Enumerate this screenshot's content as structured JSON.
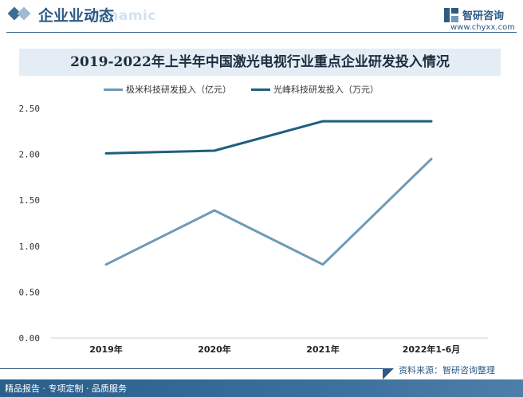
{
  "header": {
    "title": "企业业动态",
    "ghost_text": "dynamic",
    "brand_name": "智研咨询",
    "brand_url": "www.chyxx.com"
  },
  "footer": {
    "left_text": "精品报告 · 专项定制 · 品质服务",
    "source": "资料来源：智研咨询整理"
  },
  "colors": {
    "brand": "#2d5a84",
    "series_1": "#6f9ab8",
    "series_2": "#1f5f7e"
  },
  "chart_data": {
    "type": "line",
    "title": "2019-2022年上半年中国激光电视行业重点企业研发投入情况",
    "categories": [
      "2019年",
      "2020年",
      "2021年",
      "2022年1-6月"
    ],
    "series": [
      {
        "name": "极米科技研发投入（亿元）",
        "values": [
          0.8,
          1.39,
          0.8,
          1.95
        ]
      },
      {
        "name": "光峰科技研发投入（万元）",
        "values": [
          2.01,
          2.04,
          2.36,
          2.36
        ]
      }
    ],
    "ylim": [
      0,
      2.5
    ],
    "yticks": [
      "0.00",
      "0.50",
      "1.00",
      "1.50",
      "2.00",
      "2.50"
    ],
    "xlabel": "",
    "ylabel": "",
    "grid": false,
    "legend": "top"
  }
}
